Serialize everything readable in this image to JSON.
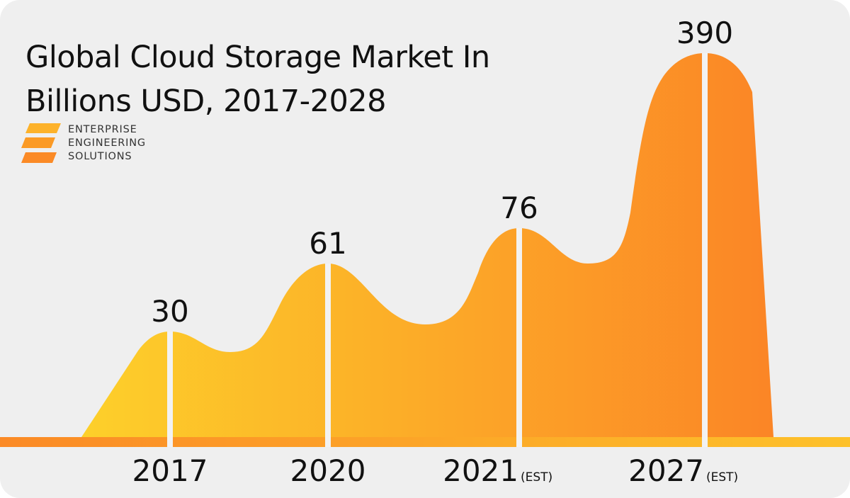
{
  "chart_data": {
    "type": "area",
    "title": "Global Cloud Storage Market In Billions USD, 2017-2028",
    "categories": [
      "2017",
      "2020",
      "2021",
      "2027"
    ],
    "category_notes": [
      "",
      "",
      "(EST)",
      "(EST)"
    ],
    "values": [
      30,
      61,
      76,
      390
    ],
    "value_labels": [
      "30",
      "61",
      "76",
      "390"
    ],
    "unit": "Billions USD",
    "grid": false,
    "colors": {
      "start": "#fdd02a",
      "end": "#fb8526",
      "background": "#efefef",
      "divider": "#f2f2f2"
    }
  },
  "brand": {
    "lines": [
      "ENTERPRISE",
      "ENGINEERING",
      "SOLUTIONS"
    ],
    "icon": "stacked-e-logo",
    "color": "#fb9a25"
  }
}
